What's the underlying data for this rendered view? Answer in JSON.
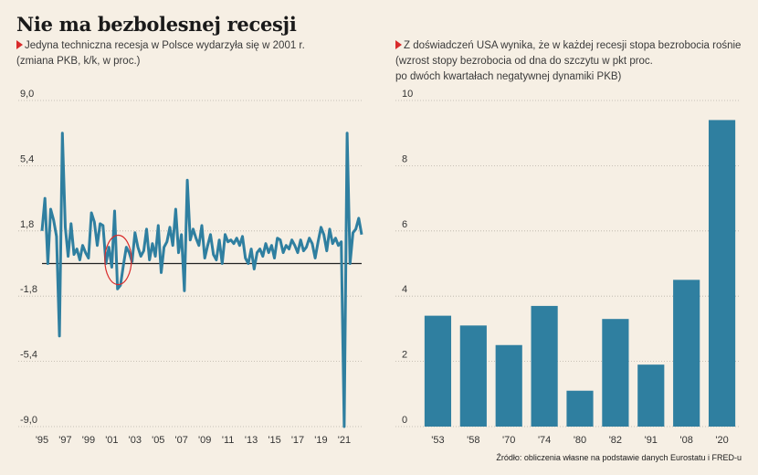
{
  "title": "Nie ma bezbolesnej recesji",
  "left": {
    "subtitle_line1": "Jedyna techniczna recesja w Polsce wydarzyła się w 2001 r.",
    "subtitle_line2": "(zmiana PKB, k/k, w proc.)"
  },
  "right": {
    "subtitle_line1": "Z doświadczeń USA wynika, że w każdej recesji stopa bezrobocia rośnie",
    "subtitle_line2": "(wzrost stopy bezrobocia od dna do szczytu w pkt proc.",
    "subtitle_line3": "po dwóch kwartałach negatywnej dynamiki PKB)"
  },
  "source": "Źródło: obliczenia własne na podstawie danych Eurostatu i FRED-u",
  "colors": {
    "series": "#2f7fa0",
    "accent": "#d92b2b",
    "zero_line": "#222222",
    "grid": "#b8b2a8"
  },
  "chart_data": [
    {
      "type": "line",
      "series_name": "",
      "y_ticks": [
        "9,0",
        "5,4",
        "1,8",
        "-1,8",
        "-5,4",
        "-9,0"
      ],
      "y_tick_values": [
        9.0,
        5.4,
        1.8,
        -1.8,
        -5.4,
        -9.0
      ],
      "ylim": [
        -9.0,
        9.0
      ],
      "x_ticks": [
        "'95",
        "'97",
        "'99",
        "'01",
        "'03",
        "'05",
        "'07",
        "'09",
        "'11",
        "'13",
        "'15",
        "'17",
        "'19",
        "'21"
      ],
      "x_tick_values": [
        1995,
        1997,
        1999,
        2001,
        2003,
        2005,
        2007,
        2009,
        2011,
        2013,
        2015,
        2017,
        2019,
        2021
      ],
      "xlim": [
        1995,
        2022.5
      ],
      "grid": "horizontal-dotted",
      "annotation": "red ellipse around 2001 recession",
      "annotation_x": [
        2000.8,
        2002.3
      ],
      "values": [
        [
          1995.0,
          1.8
        ],
        [
          1995.25,
          3.6
        ],
        [
          1995.5,
          0.0
        ],
        [
          1995.75,
          3.0
        ],
        [
          1996.0,
          2.4
        ],
        [
          1996.25,
          1.5
        ],
        [
          1996.5,
          -4.0
        ],
        [
          1996.75,
          7.2
        ],
        [
          1997.0,
          2.0
        ],
        [
          1997.25,
          0.4
        ],
        [
          1997.5,
          2.2
        ],
        [
          1997.75,
          0.5
        ],
        [
          1998.0,
          0.8
        ],
        [
          1998.25,
          0.2
        ],
        [
          1998.5,
          1.0
        ],
        [
          1998.75,
          0.6
        ],
        [
          1999.0,
          0.3
        ],
        [
          1999.25,
          2.8
        ],
        [
          1999.5,
          2.3
        ],
        [
          1999.75,
          1.0
        ],
        [
          2000.0,
          2.2
        ],
        [
          2000.25,
          2.1
        ],
        [
          2000.5,
          0.0
        ],
        [
          2000.75,
          0.9
        ],
        [
          2001.0,
          -0.2
        ],
        [
          2001.25,
          2.9
        ],
        [
          2001.5,
          -1.4
        ],
        [
          2001.75,
          -1.2
        ],
        [
          2002.0,
          -0.1
        ],
        [
          2002.25,
          0.9
        ],
        [
          2002.5,
          0.6
        ],
        [
          2002.75,
          0.1
        ],
        [
          2003.0,
          1.7
        ],
        [
          2003.25,
          0.9
        ],
        [
          2003.5,
          0.4
        ],
        [
          2003.75,
          0.7
        ],
        [
          2004.0,
          1.9
        ],
        [
          2004.25,
          0.2
        ],
        [
          2004.5,
          1.1
        ],
        [
          2004.75,
          0.4
        ],
        [
          2005.0,
          2.1
        ],
        [
          2005.25,
          -0.5
        ],
        [
          2005.5,
          0.9
        ],
        [
          2005.75,
          1.2
        ],
        [
          2006.0,
          2.0
        ],
        [
          2006.25,
          1.0
        ],
        [
          2006.5,
          3.0
        ],
        [
          2006.75,
          0.6
        ],
        [
          2007.0,
          1.6
        ],
        [
          2007.25,
          -1.5
        ],
        [
          2007.5,
          4.6
        ],
        [
          2007.75,
          1.3
        ],
        [
          2008.0,
          1.9
        ],
        [
          2008.25,
          1.4
        ],
        [
          2008.5,
          1.0
        ],
        [
          2008.75,
          2.1
        ],
        [
          2009.0,
          0.3
        ],
        [
          2009.25,
          1.0
        ],
        [
          2009.5,
          1.6
        ],
        [
          2009.75,
          0.5
        ],
        [
          2010.0,
          0.2
        ],
        [
          2010.25,
          1.3
        ],
        [
          2010.5,
          0.0
        ],
        [
          2010.75,
          1.6
        ],
        [
          2011.0,
          1.2
        ],
        [
          2011.25,
          1.3
        ],
        [
          2011.5,
          1.1
        ],
        [
          2011.75,
          1.4
        ],
        [
          2012.0,
          1.0
        ],
        [
          2012.25,
          1.5
        ],
        [
          2012.5,
          0.3
        ],
        [
          2012.75,
          0.0
        ],
        [
          2013.0,
          0.8
        ],
        [
          2013.25,
          -0.3
        ],
        [
          2013.5,
          0.6
        ],
        [
          2013.75,
          0.8
        ],
        [
          2014.0,
          0.4
        ],
        [
          2014.25,
          1.1
        ],
        [
          2014.5,
          0.6
        ],
        [
          2014.75,
          1.0
        ],
        [
          2015.0,
          0.3
        ],
        [
          2015.25,
          1.4
        ],
        [
          2015.5,
          1.3
        ],
        [
          2015.75,
          0.6
        ],
        [
          2016.0,
          1.0
        ],
        [
          2016.25,
          0.8
        ],
        [
          2016.5,
          1.3
        ],
        [
          2016.75,
          1.0
        ],
        [
          2017.0,
          0.6
        ],
        [
          2017.25,
          1.3
        ],
        [
          2017.5,
          0.7
        ],
        [
          2017.75,
          0.9
        ],
        [
          2018.0,
          1.4
        ],
        [
          2018.25,
          1.1
        ],
        [
          2018.5,
          0.3
        ],
        [
          2018.75,
          1.2
        ],
        [
          2019.0,
          2.0
        ],
        [
          2019.25,
          1.6
        ],
        [
          2019.5,
          0.7
        ],
        [
          2019.75,
          1.9
        ],
        [
          2020.0,
          1.1
        ],
        [
          2020.25,
          1.4
        ],
        [
          2020.5,
          1.0
        ],
        [
          2020.75,
          1.2
        ],
        [
          2021.0,
          -9.0
        ],
        [
          2021.25,
          7.2
        ],
        [
          2021.5,
          0.0
        ],
        [
          2021.75,
          1.7
        ],
        [
          2022.0,
          1.9
        ],
        [
          2022.25,
          2.5
        ],
        [
          2022.5,
          1.6
        ]
      ]
    },
    {
      "type": "bar",
      "categories": [
        "'53",
        "'58",
        "'70",
        "'74",
        "'80",
        "'82",
        "'91",
        "'08",
        "'20"
      ],
      "values": [
        3.4,
        3.1,
        2.5,
        3.7,
        1.1,
        3.3,
        1.9,
        4.5,
        9.4
      ],
      "y_ticks": [
        "10",
        "8",
        "6",
        "4",
        "2",
        "0"
      ],
      "y_tick_values": [
        10,
        8,
        6,
        4,
        2,
        0
      ],
      "ylim": [
        0,
        10
      ],
      "grid": "horizontal-dotted"
    }
  ]
}
